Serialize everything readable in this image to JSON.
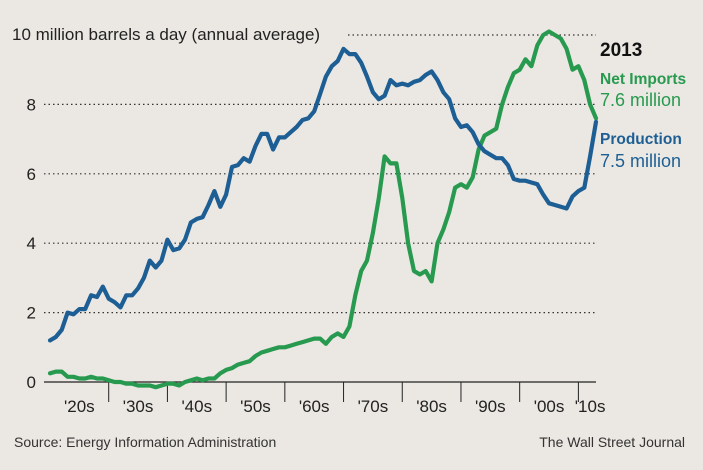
{
  "chart_data": {
    "type": "line",
    "title": "10 million barrels a day (annual average)",
    "source": "Source: Energy Information Administration",
    "publisher": "The Wall Street Journal",
    "x_ticks": [
      "'20s",
      "'30s",
      "'40s",
      "'50s",
      "'60s",
      "'70s",
      "'80s",
      "'90s",
      "'00s",
      "'10s"
    ],
    "y_ticks": [
      "0",
      "2",
      "4",
      "6",
      "8"
    ],
    "ylim": [
      0,
      10
    ],
    "xlim": [
      1920,
      2013
    ],
    "grid": "horizontal dotted",
    "annotation_year": "2013",
    "colors": {
      "production": "#1d5f94",
      "net_imports": "#279a4f",
      "background": "#ebe8e3"
    },
    "series": [
      {
        "name": "Net Imports",
        "label_value": "7.6 million",
        "color": "#279a4f",
        "x": [
          1920,
          1921,
          1922,
          1923,
          1924,
          1925,
          1926,
          1927,
          1928,
          1929,
          1930,
          1931,
          1932,
          1933,
          1934,
          1935,
          1936,
          1937,
          1938,
          1939,
          1940,
          1941,
          1942,
          1943,
          1944,
          1945,
          1946,
          1947,
          1948,
          1949,
          1950,
          1951,
          1952,
          1953,
          1954,
          1955,
          1956,
          1957,
          1958,
          1959,
          1960,
          1961,
          1962,
          1963,
          1964,
          1965,
          1966,
          1967,
          1968,
          1969,
          1970,
          1971,
          1972,
          1973,
          1974,
          1975,
          1976,
          1977,
          1978,
          1979,
          1980,
          1981,
          1982,
          1983,
          1984,
          1985,
          1986,
          1987,
          1988,
          1989,
          1990,
          1991,
          1992,
          1993,
          1994,
          1995,
          1996,
          1997,
          1998,
          1999,
          2000,
          2001,
          2002,
          2003,
          2004,
          2005,
          2006,
          2007,
          2008,
          2009,
          2010,
          2011,
          2012,
          2013
        ],
        "values": [
          0.25,
          0.3,
          0.3,
          0.15,
          0.15,
          0.1,
          0.1,
          0.15,
          0.1,
          0.1,
          0.05,
          0.0,
          0.0,
          -0.05,
          -0.05,
          -0.1,
          -0.1,
          -0.1,
          -0.15,
          -0.1,
          -0.05,
          -0.05,
          -0.1,
          0.0,
          0.05,
          0.1,
          0.05,
          0.1,
          0.1,
          0.25,
          0.35,
          0.4,
          0.5,
          0.55,
          0.6,
          0.75,
          0.85,
          0.9,
          0.95,
          1.0,
          1.0,
          1.05,
          1.1,
          1.15,
          1.2,
          1.25,
          1.25,
          1.1,
          1.3,
          1.4,
          1.3,
          1.6,
          2.5,
          3.2,
          3.5,
          4.3,
          5.3,
          6.5,
          6.3,
          6.3,
          5.3,
          4.0,
          3.2,
          3.1,
          3.2,
          2.9,
          4.0,
          4.4,
          4.9,
          5.6,
          5.7,
          5.6,
          5.9,
          6.7,
          7.1,
          7.2,
          7.3,
          8.0,
          8.5,
          8.9,
          9.0,
          9.3,
          9.1,
          9.7,
          10.0,
          10.1,
          10.0,
          9.9,
          9.6,
          9.0,
          9.1,
          8.7,
          8.0,
          7.6
        ]
      },
      {
        "name": "Production",
        "label_value": "7.5 million",
        "color": "#1d5f94",
        "x": [
          1920,
          1921,
          1922,
          1923,
          1924,
          1925,
          1926,
          1927,
          1928,
          1929,
          1930,
          1931,
          1932,
          1933,
          1934,
          1935,
          1936,
          1937,
          1938,
          1939,
          1940,
          1941,
          1942,
          1943,
          1944,
          1945,
          1946,
          1947,
          1948,
          1949,
          1950,
          1951,
          1952,
          1953,
          1954,
          1955,
          1956,
          1957,
          1958,
          1959,
          1960,
          1961,
          1962,
          1963,
          1964,
          1965,
          1966,
          1967,
          1968,
          1969,
          1970,
          1971,
          1972,
          1973,
          1974,
          1975,
          1976,
          1977,
          1978,
          1979,
          1980,
          1981,
          1982,
          1983,
          1984,
          1985,
          1986,
          1987,
          1988,
          1989,
          1990,
          1991,
          1992,
          1993,
          1994,
          1995,
          1996,
          1997,
          1998,
          1999,
          2000,
          2001,
          2002,
          2003,
          2004,
          2005,
          2006,
          2007,
          2008,
          2009,
          2010,
          2011,
          2012,
          2013
        ],
        "values": [
          1.2,
          1.3,
          1.5,
          2.0,
          1.95,
          2.1,
          2.1,
          2.5,
          2.45,
          2.75,
          2.4,
          2.3,
          2.15,
          2.5,
          2.5,
          2.7,
          3.0,
          3.5,
          3.3,
          3.5,
          4.1,
          3.8,
          3.85,
          4.1,
          4.6,
          4.7,
          4.75,
          5.1,
          5.5,
          5.05,
          5.4,
          6.2,
          6.25,
          6.45,
          6.35,
          6.8,
          7.15,
          7.15,
          6.7,
          7.05,
          7.05,
          7.2,
          7.35,
          7.55,
          7.6,
          7.8,
          8.3,
          8.8,
          9.1,
          9.25,
          9.6,
          9.45,
          9.45,
          9.2,
          8.8,
          8.35,
          8.15,
          8.25,
          8.7,
          8.55,
          8.6,
          8.55,
          8.65,
          8.7,
          8.85,
          8.95,
          8.7,
          8.35,
          8.15,
          7.6,
          7.35,
          7.4,
          7.2,
          6.85,
          6.65,
          6.55,
          6.45,
          6.45,
          6.25,
          5.85,
          5.8,
          5.8,
          5.75,
          5.7,
          5.4,
          5.15,
          5.1,
          5.05,
          5.0,
          5.35,
          5.5,
          5.6,
          6.5,
          7.5
        ]
      }
    ]
  }
}
